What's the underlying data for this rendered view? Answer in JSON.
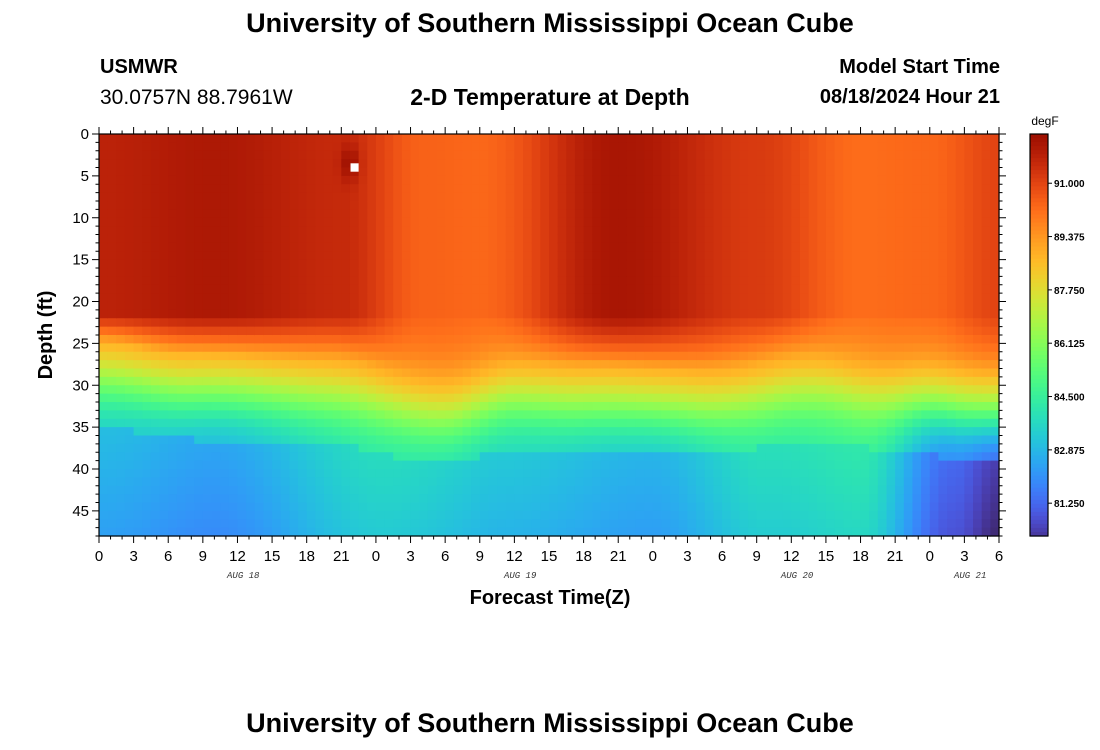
{
  "header": {
    "title": "University of Southern Mississippi Ocean Cube",
    "station_name": "USMWR",
    "station_coords": "30.0757N  88.7961W",
    "plot_title": "2-D Temperature at Depth",
    "model_label": "Model Start Time",
    "model_time": "08/18/2024 Hour 21"
  },
  "footer": {
    "title": "University of Southern Mississippi Ocean Cube"
  },
  "chart_data": {
    "type": "heatmap",
    "title": "2-D Temperature at Depth",
    "xlabel": "Forecast Time(Z)",
    "ylabel": "Depth (ft)",
    "x_hours_range": [
      0,
      78
    ],
    "x_tick_labels": [
      "0",
      "3",
      "6",
      "9",
      "12",
      "15",
      "18",
      "21",
      "0",
      "3",
      "6",
      "9",
      "12",
      "15",
      "18",
      "21",
      "0",
      "3",
      "6",
      "9",
      "12",
      "15",
      "18",
      "21",
      "0",
      "3",
      "6"
    ],
    "date_labels": [
      {
        "label": "AUG 18",
        "hour": 12.5
      },
      {
        "label": "AUG 19",
        "hour": 36.5
      },
      {
        "label": "AUG 20",
        "hour": 60.5
      },
      {
        "label": "AUG 21",
        "hour": 75.5
      }
    ],
    "ylim": [
      0,
      48
    ],
    "y_ticks": [
      0,
      5,
      10,
      15,
      20,
      25,
      30,
      35,
      40,
      45
    ],
    "colorbar": {
      "unit": "degF",
      "range": [
        80.25,
        92.5
      ],
      "tick_values": [
        91.0,
        89.375,
        87.75,
        86.125,
        84.5,
        82.875,
        81.25
      ],
      "tick_labels": [
        "91.000",
        "89.375",
        "87.750",
        "86.125",
        "84.500",
        "82.875",
        "81.250"
      ]
    },
    "surface_temperature_keyframes": {
      "hours": [
        0,
        10,
        21,
        28,
        33,
        45,
        57,
        66,
        72,
        78
      ],
      "temp_0_22ft": [
        91.8,
        92.1,
        91.6,
        90.4,
        90.3,
        92.2,
        91.2,
        90.2,
        90.3,
        91.0
      ]
    },
    "thermocline_depth_keyframes": {
      "hours": [
        0,
        8,
        20,
        30,
        36,
        42,
        52,
        62,
        70,
        78
      ],
      "depth_ft": [
        29,
        30.5,
        31,
        33.5,
        31.5,
        32,
        32.5,
        30.5,
        32,
        33.5
      ]
    },
    "bottom_temperature_keyframes": {
      "hours": [
        0,
        10,
        24,
        35,
        48,
        58,
        66,
        74,
        78
      ],
      "temp_degF": [
        83.0,
        82.5,
        83.8,
        83.3,
        82.8,
        83.9,
        84.2,
        81.3,
        80.4
      ]
    }
  }
}
